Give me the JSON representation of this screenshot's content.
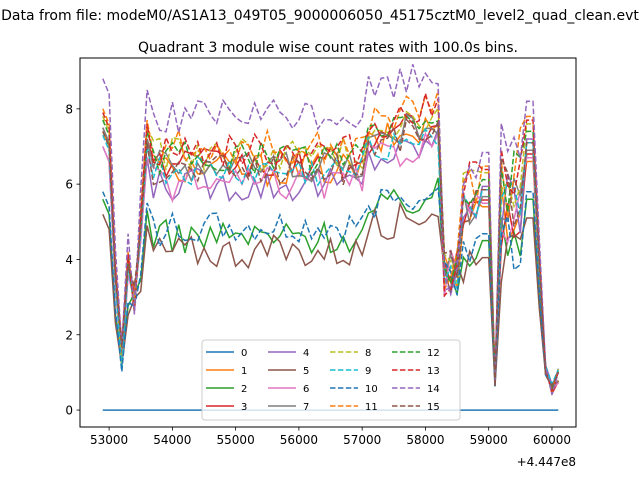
{
  "figure": {
    "suptitle": "Data from file: modeM0/AS1A13_049T05_9000006050_45175cztM0_level2_quad_clean.evt",
    "title": "Quadrant 3 module wise count rates with 100.0s bins.",
    "x_offset_label": "+4.447e8"
  },
  "chart_data": {
    "type": "line",
    "title": "Quadrant 3 module wise count rates with 100.0s bins.",
    "xlabel": "",
    "ylabel": "",
    "x_offset": 444700000,
    "xlim": [
      52540,
      60380
    ],
    "ylim": [
      -0.45,
      9.35
    ],
    "xticks": [
      53000,
      54000,
      55000,
      56000,
      57000,
      58000,
      59000,
      60000
    ],
    "xtick_labels": [
      "53000",
      "54000",
      "55000",
      "56000",
      "57000",
      "58000",
      "59000",
      "60000"
    ],
    "yticks": [
      0,
      2,
      4,
      6,
      8
    ],
    "ytick_labels": [
      "0",
      "2",
      "4",
      "6",
      "8"
    ],
    "legend_location": "lower center",
    "legend_columns": 4,
    "x_start": 52900,
    "x_end": 60150,
    "time_note": "100 s bins, 73 points per series",
    "series": [
      {
        "name": "0",
        "color": "#1f77b4",
        "dash": "solid",
        "level": 0
      },
      {
        "name": "1",
        "color": "#ff7f0e",
        "dash": "solid",
        "level": 6.4,
        "end_level": 6.0
      },
      {
        "name": "2",
        "color": "#2ca02c",
        "dash": "solid",
        "level": 4.6,
        "end_level": 5.0
      },
      {
        "name": "3",
        "color": "#d62728",
        "dash": "solid",
        "level": 6.5,
        "end_level": 6.2
      },
      {
        "name": "4",
        "color": "#9467bd",
        "dash": "solid",
        "level": 6.0,
        "end_level": 6.6
      },
      {
        "name": "5",
        "color": "#8c564b",
        "dash": "solid",
        "level": 4.2,
        "end_level": 4.5
      },
      {
        "name": "6",
        "color": "#e377c2",
        "dash": "solid",
        "level": 6.0,
        "end_level": 6.1
      },
      {
        "name": "7",
        "color": "#7f7f7f",
        "dash": "solid",
        "level": 6.5,
        "end_level": 6.3
      },
      {
        "name": "8",
        "color": "#bcbd22",
        "dash": "dashed",
        "level": 6.8,
        "end_level": 7.0
      },
      {
        "name": "9",
        "color": "#17becf",
        "dash": "dashed",
        "level": 6.3,
        "end_level": 6.5
      },
      {
        "name": "10",
        "color": "#1f77b4",
        "dash": "dashed",
        "level": 4.8,
        "end_level": 5.2
      },
      {
        "name": "11",
        "color": "#ff7f0e",
        "dash": "dashed",
        "level": 7.0,
        "end_level": 7.2
      },
      {
        "name": "12",
        "color": "#2ca02c",
        "dash": "dashed",
        "level": 6.7,
        "end_level": 6.8
      },
      {
        "name": "13",
        "color": "#d62728",
        "dash": "dashed",
        "level": 6.9,
        "end_level": 7.1
      },
      {
        "name": "14",
        "color": "#9467bd",
        "dash": "dashed",
        "level": 7.8,
        "end_level": 7.6
      },
      {
        "name": "15",
        "color": "#8c564b",
        "dash": "dashed",
        "level": 6.4,
        "end_level": 6.5
      }
    ]
  }
}
